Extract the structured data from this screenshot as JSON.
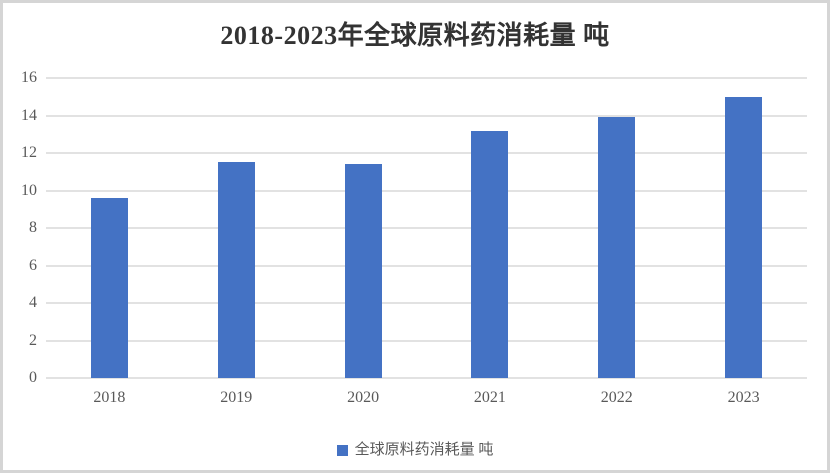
{
  "window": {
    "background": "#ffffff",
    "border_color": "#d5d5d5"
  },
  "chart_data": {
    "type": "bar",
    "title": "2018-2023年全球原料药消耗量 吨",
    "categories": [
      "2018",
      "2019",
      "2020",
      "2021",
      "2022",
      "2023"
    ],
    "series": [
      {
        "name": "全球原料药消耗量 吨",
        "values": [
          9.6,
          11.5,
          11.4,
          13.2,
          13.9,
          15.0
        ]
      }
    ],
    "xlabel": "",
    "ylabel": "",
    "ylim": [
      0,
      16
    ],
    "ytick_step": 2,
    "ytick_labels": [
      "0",
      "2",
      "4",
      "6",
      "8",
      "10",
      "12",
      "14",
      "16"
    ],
    "grid": true,
    "legend_position": "bottom",
    "bar_color": "#4472C4",
    "gridline_color": "#E2E2E2",
    "axis_label_color": "#595959",
    "title_color": "#333333"
  },
  "legend": {
    "label": "全球原料药消耗量 吨",
    "swatch_color": "#4472C4"
  }
}
